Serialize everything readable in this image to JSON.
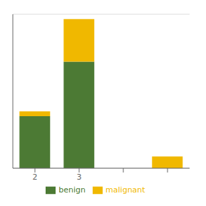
{
  "chart_data": {
    "type": "bar",
    "stacked": true,
    "categories": [
      "2",
      "3",
      null,
      null
    ],
    "series": [
      {
        "name": "benign",
        "color": "#4c7a34",
        "values": [
          22,
          45,
          0,
          0
        ]
      },
      {
        "name": "malignant",
        "color": "#f0b800",
        "values": [
          2,
          18,
          0,
          5
        ]
      }
    ],
    "ylim": [
      0,
      65
    ],
    "yticks": [
      0,
      10,
      20,
      30,
      40,
      50,
      60
    ],
    "grid": true,
    "tick_labels": "x",
    "legend": "bottom"
  }
}
